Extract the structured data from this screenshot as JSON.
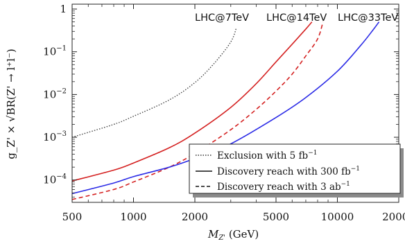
{
  "chart_data": {
    "type": "line",
    "xlabel": "M",
    "xlabel_sub": "Z'",
    "xlabel_unit": " (GeV)",
    "ylabel": "g_Z' × √BR(Z' → l⁺l⁻)",
    "x_scale": "log",
    "y_scale": "log",
    "xlim": [
      500,
      20000
    ],
    "ylim": [
      3e-05,
      1.3
    ],
    "x_ticks": [
      500,
      1000,
      2000,
      5000,
      10000,
      20000
    ],
    "x_tick_labels": [
      "500",
      "1000",
      "2000",
      "5000",
      "10000",
      "20000"
    ],
    "y_ticks": [
      0.0001,
      0.001,
      0.01,
      0.1,
      1
    ],
    "y_tick_labels": [
      {
        "base": "10",
        "exp": "−4"
      },
      {
        "base": "10",
        "exp": "−3"
      },
      {
        "base": "10",
        "exp": "−2"
      },
      {
        "base": "10",
        "exp": "−1"
      },
      {
        "base": "1",
        "exp": ""
      }
    ],
    "series": [
      {
        "legend": "exclusion",
        "color": "#444444",
        "dash": "dotted",
        "x": [
          500,
          800,
          1000,
          1500,
          2000,
          2500,
          3000,
          3200
        ],
        "y": [
          0.001,
          0.002,
          0.0031,
          0.0075,
          0.019,
          0.055,
          0.17,
          0.37
        ]
      },
      {
        "legend": "discovery_300",
        "color": "#d42020",
        "dash": "solid",
        "x": [
          500,
          800,
          1000,
          1500,
          2000,
          3000,
          4000,
          5000,
          6000,
          7000,
          7500
        ],
        "y": [
          9.5e-05,
          0.00017,
          0.00025,
          0.00057,
          0.00125,
          0.005,
          0.018,
          0.058,
          0.15,
          0.34,
          0.5
        ]
      },
      {
        "legend": "discovery_3ab",
        "color": "#d42020",
        "dash": "dashed",
        "x": [
          500,
          800,
          1000,
          1500,
          2000,
          3000,
          4000,
          5000,
          6000,
          7000,
          8000,
          8500
        ],
        "y": [
          3.5e-05,
          6e-05,
          9e-05,
          0.0002,
          0.00042,
          0.0015,
          0.0045,
          0.012,
          0.03,
          0.08,
          0.2,
          0.5
        ]
      },
      {
        "legend": "discovery_300",
        "color": "#2a2ae6",
        "dash": "solid",
        "x": [
          500,
          800,
          1000,
          1500,
          2000,
          3000,
          5000,
          7000,
          10000,
          13000,
          15000,
          16000
        ],
        "y": [
          4.8e-05,
          8.5e-05,
          0.00012,
          0.0002,
          0.00032,
          0.0007,
          0.0029,
          0.0085,
          0.035,
          0.14,
          0.33,
          0.5
        ]
      }
    ],
    "curve_labels": [
      {
        "text": "LHC@7TeV"
      },
      {
        "text": "LHC@14TeV"
      },
      {
        "text": "LHC@33TeV"
      }
    ],
    "legend": {
      "placement": "bottom-right",
      "entries": [
        {
          "style": "dotted",
          "text": "Exclusion with 5 fb",
          "sup": "−1"
        },
        {
          "style": "solid",
          "text": "Discovery reach with 300 fb",
          "sup": "−1"
        },
        {
          "style": "dashed",
          "text": "Discovery reach with 3 ab",
          "sup": "−1"
        }
      ]
    }
  }
}
